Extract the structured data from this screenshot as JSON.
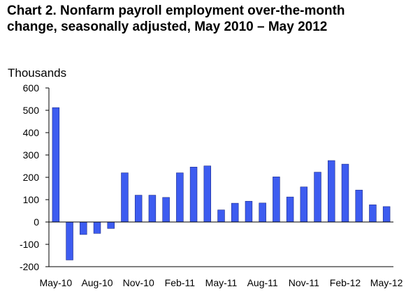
{
  "title_line1": "Chart 2. Nonfarm payroll employment over-the-month",
  "title_line2": "change, seasonally adjusted, May 2010 – May 2012",
  "chart_data": {
    "type": "bar",
    "title": "Chart 2. Nonfarm payroll employment over-the-month change, seasonally adjusted, May 2010 – May 2012",
    "ylabel": "Thousands",
    "xlabel": "",
    "ylim": [
      -200,
      600
    ],
    "yticks": [
      -200,
      -100,
      0,
      100,
      200,
      300,
      400,
      500,
      600
    ],
    "grid": false,
    "legend": "none",
    "bar_color": "#3d5cf0",
    "categories": [
      "May-10",
      "Jun-10",
      "Jul-10",
      "Aug-10",
      "Sep-10",
      "Oct-10",
      "Nov-10",
      "Dec-10",
      "Jan-11",
      "Feb-11",
      "Mar-11",
      "Apr-11",
      "May-11",
      "Jun-11",
      "Jul-11",
      "Aug-11",
      "Sep-11",
      "Oct-11",
      "Nov-11",
      "Dec-11",
      "Jan-12",
      "Feb-12",
      "Mar-12",
      "Apr-12",
      "May-12"
    ],
    "xtick_labels": [
      "May-10",
      "Aug-10",
      "Nov-10",
      "Feb-11",
      "May-11",
      "Aug-11",
      "Nov-11",
      "Feb-12",
      "May-12"
    ],
    "values": [
      512,
      -170,
      -56,
      -51,
      -29,
      220,
      120,
      120,
      110,
      220,
      246,
      251,
      54,
      84,
      93,
      85,
      202,
      112,
      157,
      223,
      275,
      259,
      143,
      77,
      69
    ]
  }
}
